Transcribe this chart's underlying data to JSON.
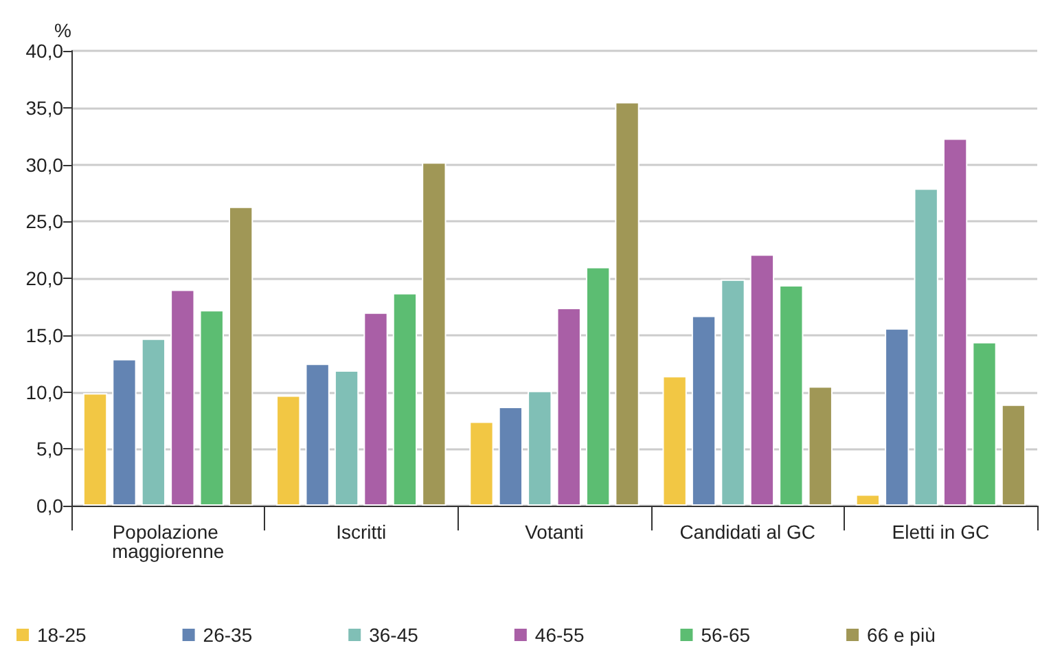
{
  "chart_data": {
    "type": "bar",
    "ylabel": "%",
    "categories": [
      "Popolazione maggiorenne",
      "Iscritti",
      "Votanti",
      "Candidati al GC",
      "Eletti in GC"
    ],
    "series": [
      {
        "name": "18-25",
        "color": "#f2c744",
        "values": [
          9.9,
          9.7,
          7.4,
          11.4,
          1.0
        ]
      },
      {
        "name": "26-35",
        "color": "#6384b3",
        "values": [
          12.9,
          12.5,
          8.7,
          16.7,
          15.6
        ]
      },
      {
        "name": "36-45",
        "color": "#80bfb6",
        "values": [
          14.7,
          11.9,
          10.1,
          19.9,
          27.9
        ]
      },
      {
        "name": "46-55",
        "color": "#a95fa6",
        "values": [
          19.0,
          17.0,
          17.4,
          22.1,
          32.3
        ]
      },
      {
        "name": "56-65",
        "color": "#5cbd72",
        "values": [
          17.2,
          18.7,
          21.0,
          19.4,
          14.4
        ]
      },
      {
        "name": "66 e più",
        "color": "#a09756",
        "values": [
          26.3,
          30.2,
          35.5,
          10.5,
          8.9
        ]
      }
    ],
    "ylim": [
      0,
      40
    ],
    "yticks": [
      {
        "value": 0,
        "label": "0,0"
      },
      {
        "value": 5,
        "label": "5,0"
      },
      {
        "value": 10,
        "label": "10,0"
      },
      {
        "value": 15,
        "label": "15,0"
      },
      {
        "value": 20,
        "label": "20,0"
      },
      {
        "value": 25,
        "label": "25,0"
      },
      {
        "value": 30,
        "label": "30,0"
      },
      {
        "value": 35,
        "label": "35,0"
      },
      {
        "value": 40,
        "label": "40,0"
      }
    ],
    "grid": "y",
    "legend": "bottom"
  }
}
